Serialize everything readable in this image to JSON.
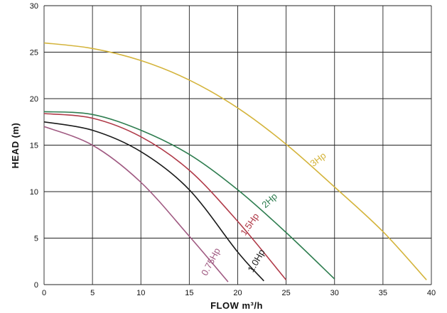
{
  "chart_data": {
    "type": "line",
    "xlabel": "FLOW m³/h",
    "ylabel": "HEAD (m)",
    "xlim": [
      0,
      40
    ],
    "ylim": [
      0,
      30
    ],
    "x_ticks": [
      0,
      5,
      10,
      15,
      20,
      25,
      30,
      35,
      40
    ],
    "y_ticks": [
      0,
      5,
      10,
      15,
      20,
      25,
      30
    ],
    "grid": true,
    "series": [
      {
        "name": "0.75Hp",
        "color": "#a05a82",
        "points": [
          [
            0,
            17
          ],
          [
            5,
            15
          ],
          [
            10,
            11
          ],
          [
            15,
            5.2
          ],
          [
            19,
            0.3
          ]
        ]
      },
      {
        "name": "1.0Hp",
        "color": "#1a1a1a",
        "points": [
          [
            0,
            17.5
          ],
          [
            5,
            16.6
          ],
          [
            10,
            14.3
          ],
          [
            15,
            10.2
          ],
          [
            20,
            3.5
          ],
          [
            22.7,
            0.4
          ]
        ]
      },
      {
        "name": "1.5Hp",
        "color": "#b03a48",
        "points": [
          [
            0,
            18.4
          ],
          [
            5,
            17.9
          ],
          [
            10,
            15.9
          ],
          [
            15,
            12.3
          ],
          [
            20,
            6.8
          ],
          [
            25,
            0.5
          ]
        ]
      },
      {
        "name": "2Hp",
        "color": "#2e7d4f",
        "points": [
          [
            0,
            18.6
          ],
          [
            5,
            18.3
          ],
          [
            10,
            16.6
          ],
          [
            15,
            14
          ],
          [
            20,
            10.2
          ],
          [
            25,
            5.6
          ],
          [
            30,
            0.6
          ]
        ]
      },
      {
        "name": "3Hp",
        "color": "#d4b43c",
        "points": [
          [
            0,
            26
          ],
          [
            5,
            25.4
          ],
          [
            10,
            24.1
          ],
          [
            15,
            22
          ],
          [
            20,
            19
          ],
          [
            25,
            15.1
          ],
          [
            30,
            10.5
          ],
          [
            35,
            5.7
          ],
          [
            39.5,
            0.5
          ]
        ]
      }
    ],
    "annotations": [
      {
        "text": "0.75Hp",
        "series": "0.75Hp",
        "x": 17.5,
        "y": 2.3,
        "angle": -62
      },
      {
        "text": "1.0Hp",
        "series": "1.0Hp",
        "x": 22.2,
        "y": 2.4,
        "angle": -60
      },
      {
        "text": "1.5Hp",
        "series": "1.5Hp",
        "x": 21.5,
        "y": 6.3,
        "angle": -55
      },
      {
        "text": "2Hp",
        "series": "2Hp",
        "x": 23.5,
        "y": 8.8,
        "angle": -42
      },
      {
        "text": "3Hp",
        "series": "3Hp",
        "x": 28.5,
        "y": 13.2,
        "angle": -38
      }
    ]
  }
}
